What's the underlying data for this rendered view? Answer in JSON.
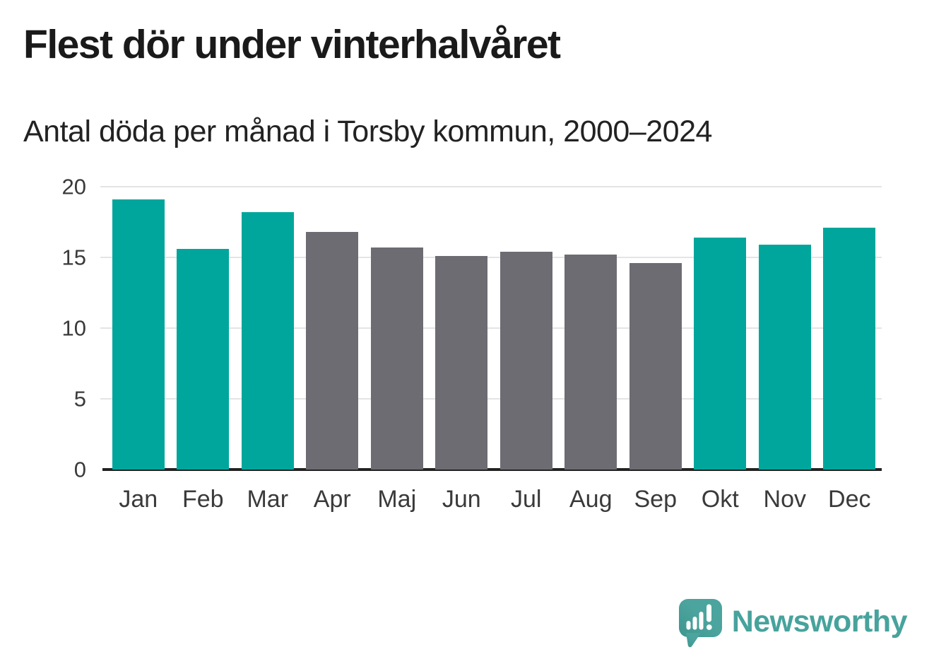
{
  "header": {
    "title": "Flest dör under vinterhalvåret",
    "subtitle": "Antal döda per månad i Torsby kommun, 2000–2024"
  },
  "chart_data": {
    "type": "bar",
    "title": "Flest dör under vinterhalvåret",
    "subtitle": "Antal döda per månad i Torsby kommun, 2000–2024",
    "categories": [
      "Jan",
      "Feb",
      "Mar",
      "Apr",
      "Maj",
      "Jun",
      "Jul",
      "Aug",
      "Sep",
      "Okt",
      "Nov",
      "Dec"
    ],
    "values": [
      19.1,
      15.6,
      18.2,
      16.8,
      15.7,
      15.1,
      15.4,
      15.2,
      14.6,
      16.4,
      15.9,
      17.1
    ],
    "bar_colors": [
      "#00a69c",
      "#00a69c",
      "#00a69c",
      "#6d6c72",
      "#6d6c72",
      "#6d6c72",
      "#6d6c72",
      "#6d6c72",
      "#6d6c72",
      "#00a69c",
      "#00a69c",
      "#00a69c"
    ],
    "highlight_color": "#00a69c",
    "base_color": "#6d6c72",
    "xlabel": "",
    "ylabel": "",
    "ylim": [
      0,
      20
    ],
    "yticks": [
      20,
      15,
      10,
      5,
      0
    ],
    "grid": "horizontal",
    "legend": "none"
  },
  "colors": {
    "background": "#ffffff",
    "gridline": "#e4e4e4",
    "axis_line": "#222222",
    "title_text": "#1a1a1a",
    "tick_label": "#3a3a3a"
  },
  "footer": {
    "brand_name": "Newsworthy",
    "brand_color": "#47a39c",
    "logo_icon": "speech-bubble-bar-chart-icon"
  }
}
